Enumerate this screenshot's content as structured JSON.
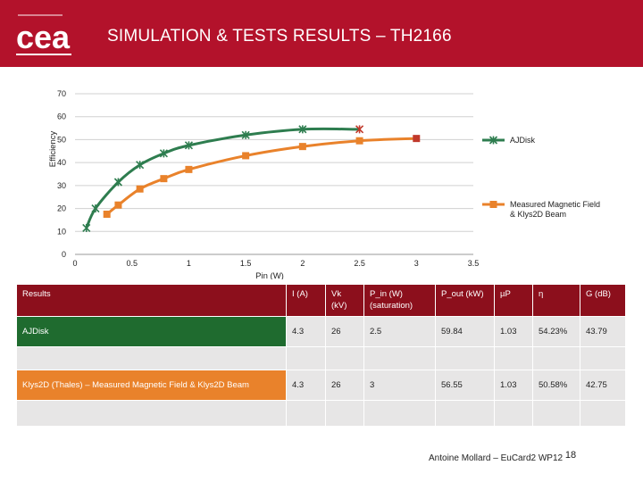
{
  "header": {
    "title": "SIMULATION & TESTS RESULTS – TH2166",
    "logo_text": "cea"
  },
  "chart_data": {
    "type": "scatter",
    "ylabel": "Efficiency",
    "xlabel": "Pin (W)",
    "xlim": [
      0,
      3.5
    ],
    "ylim": [
      0,
      70
    ],
    "xticks": [
      "0",
      "0.5",
      "1",
      "1.5",
      "2",
      "2.5",
      "3",
      "3.5"
    ],
    "yticks": [
      "0",
      "10",
      "20",
      "30",
      "40",
      "50",
      "60",
      "70"
    ],
    "grid": true,
    "legend": "right",
    "series": [
      {
        "name": "AJDisk",
        "color": "#2e7d4f",
        "marker": "star",
        "x": [
          0.1,
          0.18,
          0.38,
          0.57,
          0.78,
          1.0,
          1.5,
          2.0,
          2.5
        ],
        "y": [
          11.5,
          20,
          31.5,
          39,
          44,
          47.5,
          52,
          54.5,
          54.5
        ],
        "last_point_color": "#c0392b"
      },
      {
        "name": "Measured Magnetic Field & Klys2D Beam",
        "color": "#e9822b",
        "marker": "square",
        "x": [
          0.28,
          0.38,
          0.57,
          0.78,
          1.0,
          1.5,
          2.0,
          2.5,
          3.0
        ],
        "y": [
          17.5,
          21.5,
          28.5,
          33,
          37,
          43,
          47,
          49.5,
          50.5
        ],
        "last_point_color": "#c0392b"
      }
    ]
  },
  "table": {
    "headers": [
      "Results",
      "I (A)",
      "Vk (kV)",
      "P_in (W) (saturation)",
      "P_out (kW)",
      "µP",
      "η",
      "G (dB)"
    ],
    "rows": [
      [
        "AJDisk",
        "4.3",
        "26",
        "2.5",
        "59.84",
        "1.03",
        "54.23%",
        "43.79"
      ],
      [
        "Klys2D (Thales) – Measured Magnetic Field & Klys2D Beam",
        "4.3",
        "26",
        "3",
        "56.55",
        "1.03",
        "50.58%",
        "42.75"
      ]
    ]
  },
  "footer": {
    "author": "Antoine Mollard – EuCard2 WP12",
    "page": "18"
  }
}
